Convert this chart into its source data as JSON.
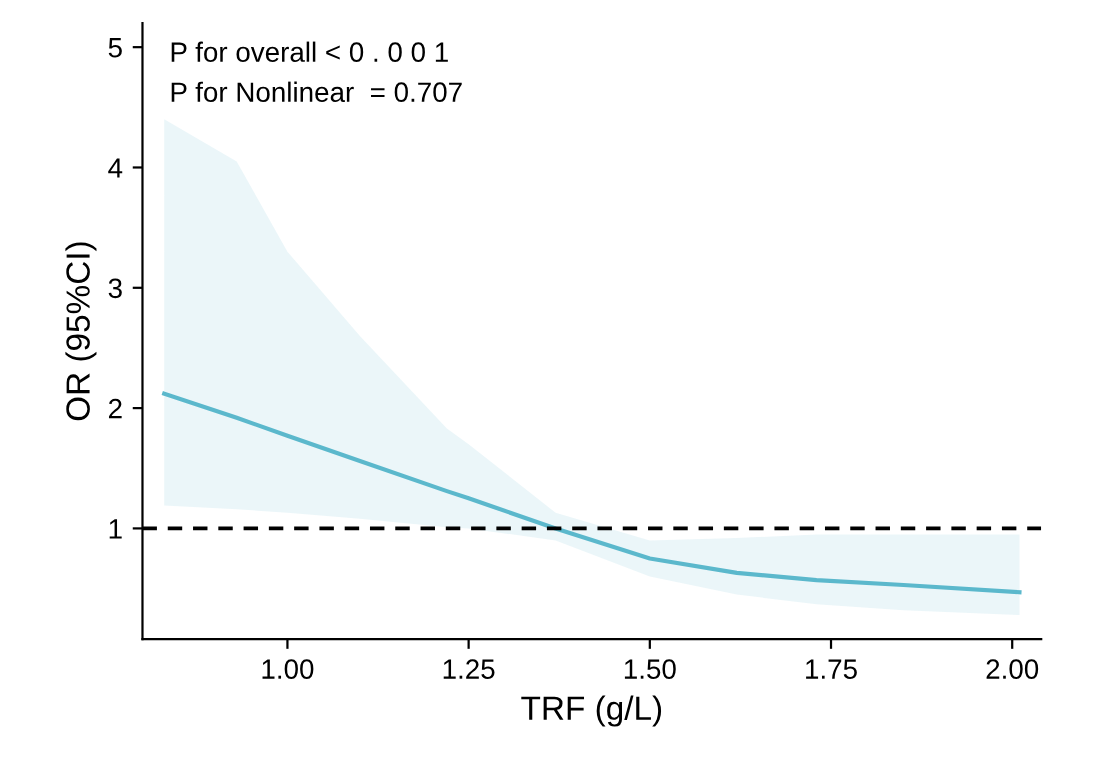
{
  "chart_data": {
    "type": "line",
    "xlabel": "TRF (g/L)",
    "ylabel": "OR (95%CI)",
    "annotations": [
      "P for overall < 0 . 0 0 1",
      "P for Nonlinear  = 0.707"
    ],
    "x": [
      0.83,
      0.93,
      1.0,
      1.1,
      1.22,
      1.25,
      1.37,
      1.5,
      1.62,
      1.73,
      1.85,
      2.01
    ],
    "series": [
      {
        "color": "#5bb8cc",
        "values": [
          2.12,
          1.92,
          1.77,
          1.56,
          1.31,
          1.25,
          1.0,
          0.75,
          0.63,
          0.57,
          0.53,
          0.47
        ],
        "upper": [
          4.4,
          4.05,
          3.3,
          2.6,
          1.83,
          1.7,
          1.13,
          0.9,
          0.92,
          0.95,
          0.95,
          0.95
        ],
        "lower": [
          1.19,
          1.16,
          1.13,
          1.08,
          1.01,
          1.0,
          0.9,
          0.6,
          0.45,
          0.37,
          0.32,
          0.28
        ]
      }
    ],
    "xlim": [
      0.8,
      2.04
    ],
    "ylim": [
      0.08,
      5.2
    ],
    "xticks": [
      {
        "value": 1.0,
        "label": "1.00"
      },
      {
        "value": 1.25,
        "label": "1.25"
      },
      {
        "value": 1.5,
        "label": "1.50"
      },
      {
        "value": 1.75,
        "label": "1.75"
      },
      {
        "value": 2.0,
        "label": "2.00"
      }
    ],
    "yticks": [
      1,
      2,
      3,
      4,
      5
    ],
    "ref_lines": [
      {
        "axis": "y",
        "value": 1,
        "color": "#000000",
        "line_style": "dashed"
      }
    ],
    "grid": false,
    "legend": false
  }
}
